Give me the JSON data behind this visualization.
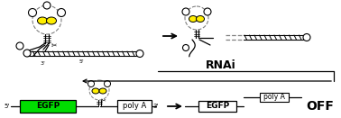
{
  "bg_color": "#ffffff",
  "egfp_color": "#00dd00",
  "guanine_color": "#ffee00",
  "line_color": "#000000",
  "gray_color": "#888888",
  "text_rnai": "RNAi",
  "text_off": "OFF",
  "text_egfp": "EGFP",
  "text_polya": "poly A",
  "text_5p": "5'",
  "text_3p": "3'",
  "fig_w": 3.78,
  "fig_h": 1.31,
  "dpi": 100
}
